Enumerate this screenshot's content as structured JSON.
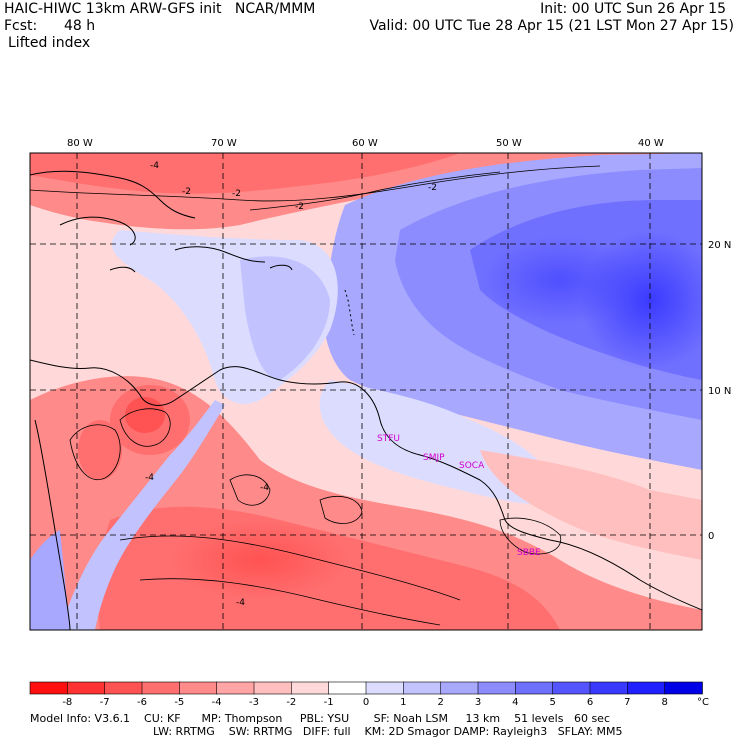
{
  "header": {
    "left_line1": "HAIC-HIWC 13km ARW-GFS init   NCAR/MMM",
    "left_line2_label": "Fcst:",
    "left_line2_value": "48 h",
    "field": "Lifted index",
    "init": "Init: 00 UTC Sun 26 Apr 15",
    "valid": "Valid: 00 UTC Tue 28 Apr 15 (21 LST Mon 27 Apr 15)"
  },
  "axes": {
    "lon_labels": [
      "80 W",
      "70 W",
      "60 W",
      "50 W",
      "40 W"
    ],
    "lat_labels": [
      "20 N",
      "10 N",
      "0"
    ]
  },
  "contour_labels": [
    "-4",
    "-2",
    "-2",
    "-2",
    "-2",
    "-4",
    "-4",
    "-4"
  ],
  "stations": [
    "STFU",
    "SMJP",
    "SOCA",
    "SBBE"
  ],
  "colorbar": {
    "ticks": [
      "-8",
      "-7",
      "-6",
      "-5",
      "-4",
      "-3",
      "-2",
      "-1",
      "0",
      "1",
      "2",
      "3",
      "4",
      "5",
      "6",
      "7",
      "8"
    ],
    "unit": "°C",
    "colors": [
      "#ff1010",
      "#ff3333",
      "#ff5252",
      "#ff6f6f",
      "#ff8a8a",
      "#ffa5a5",
      "#ffbfbf",
      "#ffd9d9",
      "#ffffff",
      "#dcdcff",
      "#c2c2ff",
      "#a8a8ff",
      "#8c8cff",
      "#7070ff",
      "#5555ff",
      "#3a3aff",
      "#1f1fff",
      "#0000e6"
    ]
  },
  "model_info": {
    "line1": "Model Info: V3.6.1    CU: KF      MP: Thompson     PBL: YSU       SF: Noah LSM     13 km    51 levels   60 sec",
    "line2": "LW: RRTMG    SW: RRTMG   DIFF: full    KM: 2D Smagor DAMP: Rayleigh3   SFLAY: MM5"
  }
}
